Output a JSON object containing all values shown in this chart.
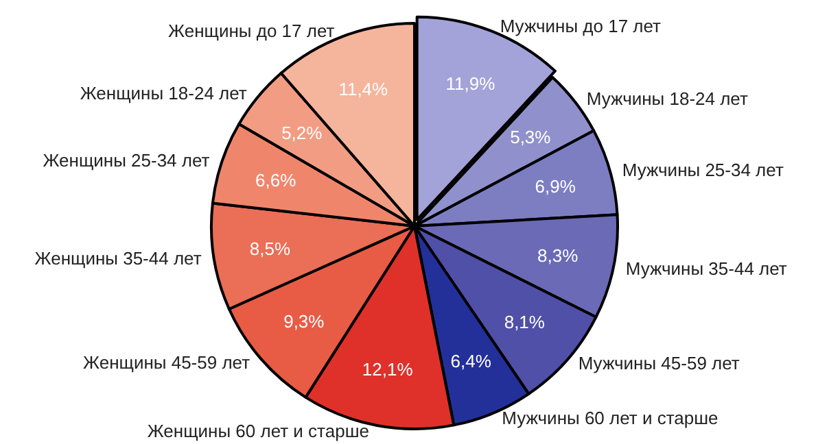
{
  "chart_data": {
    "type": "pie",
    "categories": [
      "Мужчины до 17 лет",
      "Мужчины 18-24 лет",
      "Мужчины 25-34 лет",
      "Мужчины 35-44 лет",
      "Мужчины 45-59 лет",
      "Мужчины 60 лет и старше",
      "Женщины 60 лет и старше",
      "Женщины 45-59 лет",
      "Женщины 35-44 лет",
      "Женщины 25-34 лет",
      "Женщины 18-24 лет",
      "Женщины до 17 лет"
    ],
    "values": [
      11.9,
      5.3,
      6.9,
      8.3,
      8.1,
      6.4,
      12.1,
      9.3,
      8.5,
      6.6,
      5.2,
      11.4
    ],
    "value_labels": [
      "11,9%",
      "5,3%",
      "6,9%",
      "8,3%",
      "8,1%",
      "6,4%",
      "12,1%",
      "9,3%",
      "8,5%",
      "6,6%",
      "5,2%",
      "11,4%"
    ],
    "colors": [
      "#a3a3d9",
      "#9090cc",
      "#7d7dc2",
      "#6a6ab7",
      "#5050a8",
      "#23309a",
      "#e0302a",
      "#e85b45",
      "#eb6e56",
      "#ef866c",
      "#f29c83",
      "#f5b49c"
    ],
    "legend": false
  }
}
